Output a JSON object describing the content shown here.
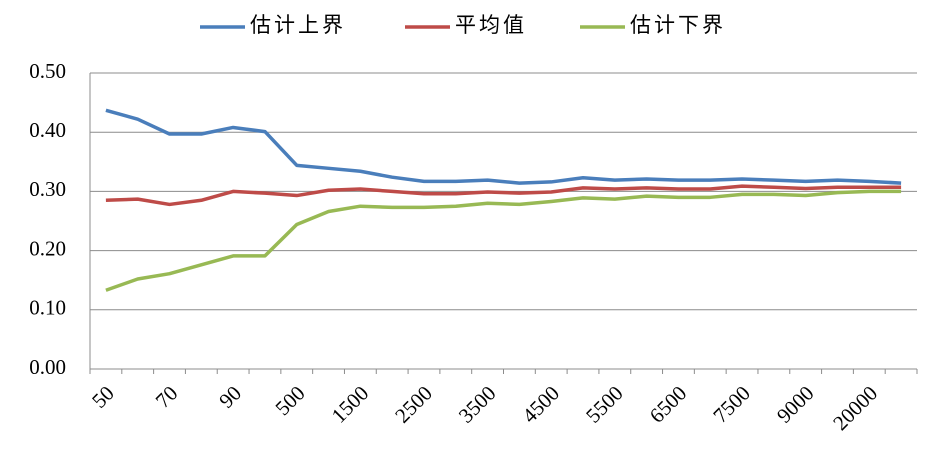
{
  "chart_data": {
    "type": "line",
    "categories": [
      "50",
      null,
      "70",
      null,
      "90",
      null,
      "500",
      null,
      "1500",
      null,
      "2500",
      null,
      "3500",
      null,
      "4500",
      null,
      "5500",
      null,
      "6500",
      null,
      "7500",
      null,
      "9000",
      null,
      "20000",
      null
    ],
    "series": [
      {
        "name": "估计上界",
        "color": "#4a7ebb",
        "values": [
          0.437,
          0.422,
          0.397,
          0.397,
          0.408,
          0.401,
          0.344,
          0.339,
          0.334,
          0.324,
          0.317,
          0.317,
          0.319,
          0.314,
          0.316,
          0.323,
          0.319,
          0.321,
          0.319,
          0.319,
          0.321,
          0.319,
          0.317,
          0.319,
          0.317,
          0.314
        ]
      },
      {
        "name": "平均值",
        "color": "#be4b48",
        "values": [
          0.285,
          0.287,
          0.278,
          0.285,
          0.3,
          0.297,
          0.293,
          0.302,
          0.304,
          0.3,
          0.296,
          0.296,
          0.299,
          0.297,
          0.299,
          0.306,
          0.304,
          0.306,
          0.304,
          0.304,
          0.309,
          0.307,
          0.305,
          0.307,
          0.307,
          0.307
        ]
      },
      {
        "name": "估计下界",
        "color": "#98b954",
        "values": [
          0.133,
          0.152,
          0.161,
          0.176,
          0.191,
          0.191,
          0.244,
          0.266,
          0.275,
          0.273,
          0.273,
          0.275,
          0.28,
          0.278,
          0.283,
          0.289,
          0.287,
          0.292,
          0.29,
          0.29,
          0.295,
          0.295,
          0.293,
          0.298,
          0.3,
          0.3
        ]
      }
    ],
    "ylim": [
      0,
      0.5
    ],
    "yticks": [
      {
        "value": 0,
        "label": "0.00"
      },
      {
        "value": 0.1,
        "label": "0.10"
      },
      {
        "value": 0.2,
        "label": "0.20"
      },
      {
        "value": 0.3,
        "label": "0.30"
      },
      {
        "value": 0.4,
        "label": "0.40"
      },
      {
        "value": 0.5,
        "label": "0.50"
      }
    ],
    "grid": true,
    "legend": "top"
  }
}
